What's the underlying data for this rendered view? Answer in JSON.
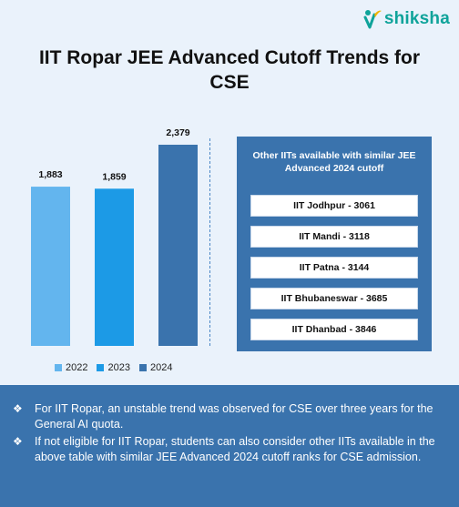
{
  "brand": {
    "name": "shiksha",
    "color": "#0fa39a"
  },
  "title": "IIT Ropar JEE Advanced Cutoff Trends for CSE",
  "chart_data": {
    "type": "bar",
    "categories": [
      "2022",
      "2023",
      "2024"
    ],
    "values": [
      1883,
      1859,
      2379
    ],
    "value_labels": [
      "1,883",
      "1,859",
      "2,379"
    ],
    "colors": [
      "#63b5ee",
      "#1c9ae6",
      "#3a73ad"
    ],
    "legend": [
      "2022",
      "2023",
      "2024"
    ],
    "legend_position": "bottom",
    "title": "IIT Ropar JEE Advanced Cutoff Trends for CSE",
    "xlabel": "",
    "ylabel": "",
    "grid": false
  },
  "panel": {
    "heading": "Other IITs available with similar JEE Advanced 2024 cutoff",
    "items": [
      "IIT Jodhpur - 3061",
      "IIT Mandi - 3118",
      "IIT Patna - 3144",
      "IIT Bhubaneswar - 3685",
      "IIT Dhanbad - 3846"
    ]
  },
  "notes": [
    "For IIT Ropar, an unstable trend was observed for CSE over three years for the General AI quota.",
    "If not eligible for IIT Ropar, students can also consider other IITs available in the above table with similar JEE Advanced 2024 cutoff ranks for CSE admission."
  ],
  "colors": {
    "panel": "#3a73ad",
    "background": "#eaf2fb"
  },
  "icons": {
    "bullet": "diamond-bullet-icon",
    "logo": "shiksha-logo-icon"
  }
}
